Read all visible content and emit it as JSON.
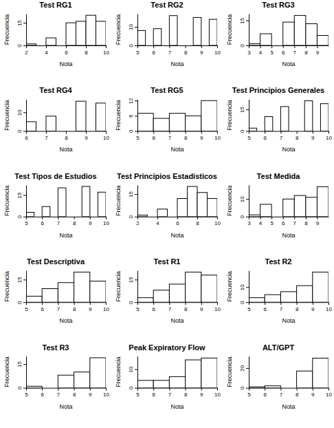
{
  "chart_data": [
    {
      "type": "histogram",
      "title": "Test RG1",
      "x_label": "Nota",
      "y_label": "Frecuencia",
      "color": "#ffffff",
      "bins": [
        2,
        3,
        4,
        5,
        6,
        7,
        8,
        9,
        10
      ],
      "counts": [
        1,
        0,
        5,
        0,
        15,
        16,
        20,
        16
      ],
      "xlim": [
        2,
        10
      ],
      "xticks": [
        2,
        4,
        6,
        8,
        10
      ],
      "ylim": [
        0,
        21
      ],
      "yticks": [
        0,
        15
      ]
    },
    {
      "type": "histogram",
      "title": "Test RG2",
      "x_label": "Nota",
      "y_label": "Frecuencia",
      "color": "#ffffff",
      "bins": [
        5,
        5.5,
        6,
        6.5,
        7,
        7.5,
        8,
        8.5,
        9,
        9.5,
        10
      ],
      "counts": [
        8,
        0,
        9,
        0,
        16,
        0,
        0,
        15,
        0,
        14
      ],
      "xlim": [
        5,
        10
      ],
      "xticks": [
        5,
        6,
        7,
        8,
        9,
        10
      ],
      "ylim": [
        0,
        17
      ],
      "yticks": [
        0,
        10
      ]
    },
    {
      "type": "histogram",
      "title": "Test RG3",
      "x_label": "Nota",
      "y_label": "Frecuencia",
      "color": "#ffffff",
      "bins": [
        3,
        4,
        5,
        6,
        7,
        8,
        9,
        10
      ],
      "counts": [
        1,
        7,
        0,
        14,
        18,
        13,
        6
      ],
      "xlim": [
        3,
        10
      ],
      "xticks": [
        3,
        4,
        5,
        6,
        7,
        8,
        9
      ],
      "ylim": [
        0,
        19
      ],
      "yticks": [
        0,
        15
      ]
    },
    {
      "type": "histogram",
      "title": "Test RG4",
      "x_label": "Nota",
      "y_label": "Frecuencia",
      "color": "#ffffff",
      "bins": [
        6,
        6.5,
        7,
        7.5,
        8,
        8.5,
        9,
        9.5,
        10
      ],
      "counts": [
        5,
        0,
        8,
        0,
        0,
        16,
        0,
        15
      ],
      "xlim": [
        6,
        10
      ],
      "xticks": [
        6,
        7,
        8,
        9,
        10
      ],
      "ylim": [
        0,
        17
      ],
      "yticks": [
        0,
        10
      ]
    },
    {
      "type": "histogram",
      "title": "Test RG5",
      "x_label": "Nota",
      "y_label": "Frecuencia",
      "color": "#ffffff",
      "bins": [
        5,
        6,
        7,
        8,
        9,
        10
      ],
      "counts": [
        7,
        5,
        7,
        6,
        12
      ],
      "xlim": [
        5,
        10
      ],
      "xticks": [
        5,
        6,
        7,
        8,
        9,
        10
      ],
      "ylim": [
        0,
        12.5
      ],
      "yticks": [
        0,
        6,
        12
      ]
    },
    {
      "type": "histogram",
      "title": "Test Principios Generales",
      "x_label": "Nota",
      "y_label": "Frecuencia",
      "color": "#ffffff",
      "bins": [
        5,
        5.5,
        6,
        6.5,
        7,
        7.5,
        8,
        8.5,
        9,
        9.5,
        10
      ],
      "counts": [
        2,
        0,
        10,
        0,
        17,
        0,
        0,
        21,
        0,
        19
      ],
      "xlim": [
        5,
        10
      ],
      "xticks": [
        5,
        6,
        7,
        8,
        9,
        10
      ],
      "ylim": [
        0,
        22
      ],
      "yticks": [
        0,
        15
      ]
    },
    {
      "type": "histogram",
      "title": "Test Tipos de Estudios",
      "x_label": "Nota",
      "y_label": "Frecuencia",
      "color": "#ffffff",
      "bins": [
        5,
        5.5,
        6,
        6.5,
        7,
        7.5,
        8,
        8.5,
        9,
        9.5,
        10
      ],
      "counts": [
        3,
        0,
        7,
        0,
        20,
        0,
        0,
        21,
        0,
        17
      ],
      "xlim": [
        5,
        10
      ],
      "xticks": [
        5,
        6,
        7,
        8,
        9,
        10
      ],
      "ylim": [
        0,
        22
      ],
      "yticks": [
        0,
        15
      ]
    },
    {
      "type": "histogram",
      "title": "Test Principios Estadísticos",
      "x_label": "Nota",
      "y_label": "Frecuencia",
      "color": "#ffffff",
      "bins": [
        2,
        3,
        4,
        5,
        6,
        7,
        8,
        9,
        10
      ],
      "counts": [
        1,
        0,
        5,
        0,
        12,
        20,
        16,
        12
      ],
      "xlim": [
        2,
        10
      ],
      "xticks": [
        2,
        4,
        6,
        8,
        10
      ],
      "ylim": [
        0,
        21
      ],
      "yticks": [
        0,
        15
      ]
    },
    {
      "type": "histogram",
      "title": "Test Medida",
      "x_label": "Nota",
      "y_label": "Frecuencia",
      "color": "#ffffff",
      "bins": [
        3,
        4,
        5,
        6,
        7,
        8,
        9,
        10
      ],
      "counts": [
        1,
        7,
        0,
        10,
        12,
        11,
        17
      ],
      "xlim": [
        3,
        10
      ],
      "xticks": [
        3,
        4,
        5,
        6,
        7,
        8,
        9
      ],
      "ylim": [
        0,
        18
      ],
      "yticks": [
        0,
        10
      ]
    },
    {
      "type": "histogram",
      "title": "Test Descriptiva",
      "x_label": "Nota",
      "y_label": "Frecuencia",
      "color": "#ffffff",
      "bins": [
        5,
        6,
        7,
        8,
        9,
        10
      ],
      "counts": [
        4,
        9,
        13,
        20,
        14
      ],
      "xlim": [
        5,
        10
      ],
      "xticks": [
        5,
        6,
        7,
        8,
        9,
        10
      ],
      "ylim": [
        0,
        21
      ],
      "yticks": [
        0,
        15
      ]
    },
    {
      "type": "histogram",
      "title": "Test R1",
      "x_label": "Nota",
      "y_label": "Frecuencia",
      "color": "#ffffff",
      "bins": [
        5,
        6,
        7,
        8,
        9,
        10
      ],
      "counts": [
        3,
        8,
        12,
        20,
        18
      ],
      "xlim": [
        5,
        10
      ],
      "xticks": [
        5,
        6,
        7,
        8,
        9,
        10
      ],
      "ylim": [
        0,
        21
      ],
      "yticks": [
        0,
        15
      ]
    },
    {
      "type": "histogram",
      "title": "Test R2",
      "x_label": "Nota",
      "y_label": "Frecuencia",
      "color": "#ffffff",
      "bins": [
        5,
        6,
        7,
        8,
        9,
        10
      ],
      "counts": [
        3,
        5,
        7,
        11,
        20
      ],
      "xlim": [
        5,
        10
      ],
      "xticks": [
        5,
        6,
        7,
        8,
        9,
        10
      ],
      "ylim": [
        0,
        21
      ],
      "yticks": [
        0,
        10
      ]
    },
    {
      "type": "histogram",
      "title": "Test R3",
      "x_label": "Nota",
      "y_label": "Frecuencia",
      "color": "#ffffff",
      "bins": [
        5,
        6,
        7,
        8,
        9,
        10
      ],
      "counts": [
        1,
        0,
        8,
        10,
        19
      ],
      "xlim": [
        5,
        10
      ],
      "xticks": [
        5,
        6,
        7,
        8,
        9,
        10
      ],
      "ylim": [
        0,
        20
      ],
      "yticks": [
        0,
        15
      ]
    },
    {
      "type": "histogram",
      "title": "Peak Expiratory Flow",
      "x_label": "Nota",
      "y_label": "Frecuencia",
      "color": "#ffffff",
      "bins": [
        5,
        6,
        7,
        8,
        9,
        10
      ],
      "counts": [
        4,
        4,
        6,
        15,
        16
      ],
      "xlim": [
        5,
        10
      ],
      "xticks": [
        5,
        6,
        7,
        8,
        9,
        10
      ],
      "ylim": [
        0,
        17
      ],
      "yticks": [
        0,
        10
      ]
    },
    {
      "type": "histogram",
      "title": "ALT/GPT",
      "x_label": "Nota",
      "y_label": "Frecuencia",
      "color": "#ffffff",
      "bins": [
        5,
        6,
        7,
        8,
        9,
        10
      ],
      "counts": [
        1,
        2,
        0,
        17,
        30
      ],
      "xlim": [
        5,
        10
      ],
      "xticks": [
        5,
        6,
        7,
        8,
        9,
        10
      ],
      "ylim": [
        0,
        32
      ],
      "yticks": [
        0,
        20
      ]
    }
  ]
}
